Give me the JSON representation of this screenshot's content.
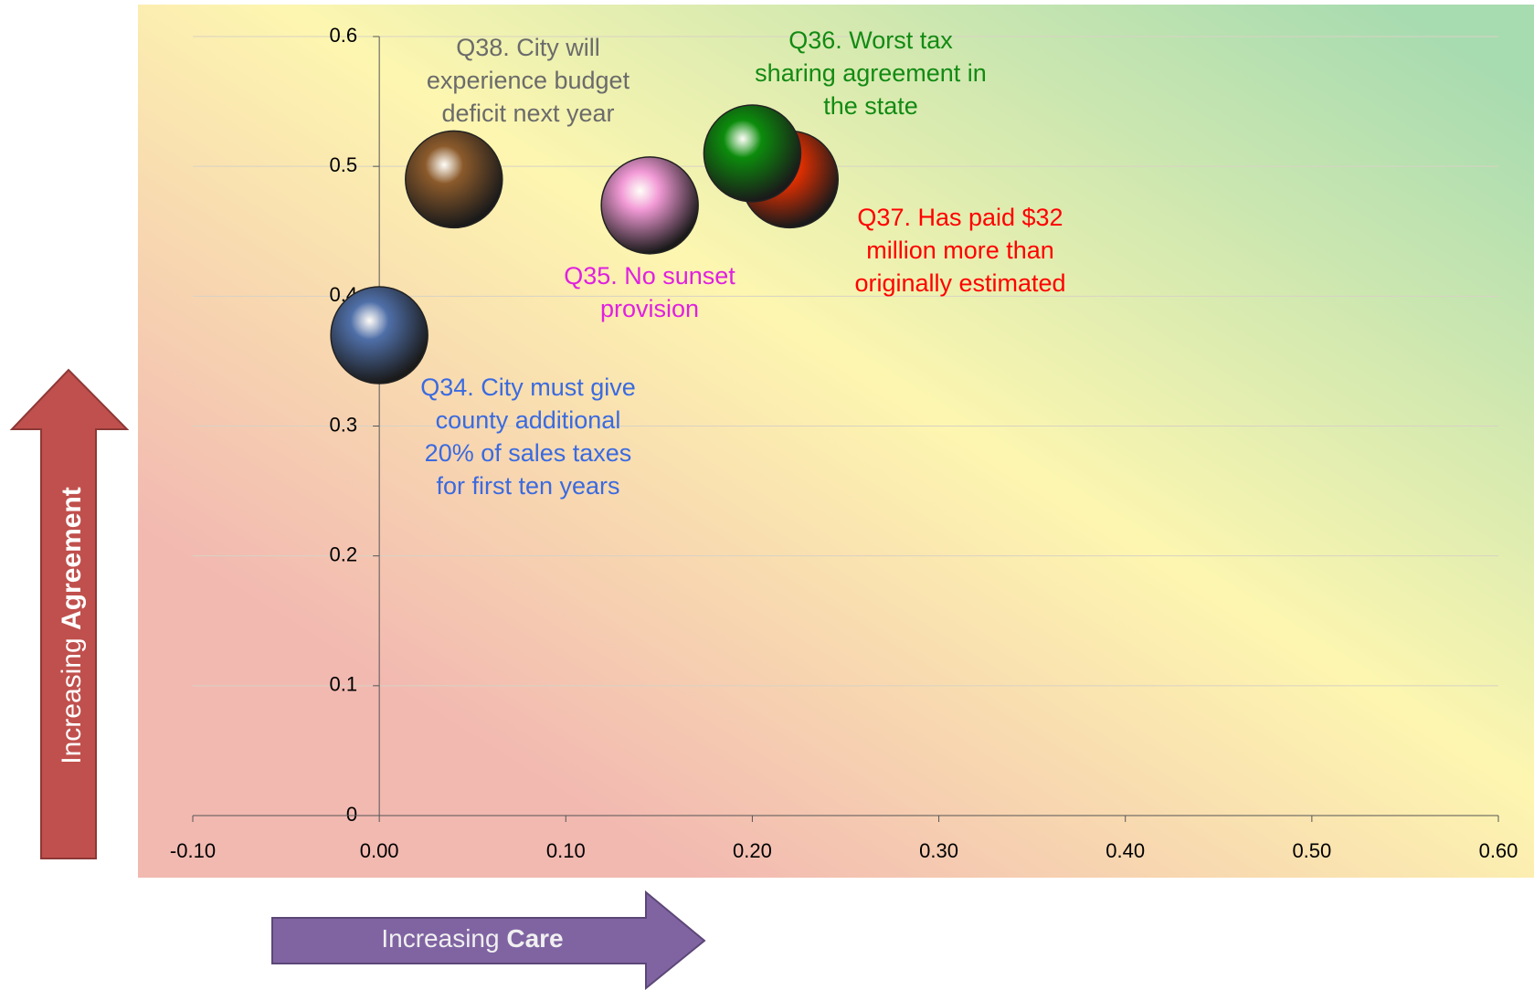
{
  "chart_data": {
    "type": "scatter",
    "x_label": [
      "Increasing",
      "Care"
    ],
    "y_label": [
      "Increasing",
      "Agreement"
    ],
    "xlim": [
      -0.1,
      0.6
    ],
    "ylim": [
      0,
      0.6
    ],
    "xticks": [
      {
        "value": -0.1,
        "label": "-0.10"
      },
      {
        "value": 0,
        "label": "0.00"
      },
      {
        "value": 0.1,
        "label": "0.10"
      },
      {
        "value": 0.2,
        "label": "0.20"
      },
      {
        "value": 0.3,
        "label": "0.30"
      },
      {
        "value": 0.4,
        "label": "0.40"
      },
      {
        "value": 0.5,
        "label": "0.50"
      },
      {
        "value": 0.6,
        "label": "0.60"
      }
    ],
    "yticks": [
      0,
      0.1,
      0.2,
      0.3,
      0.4,
      0.5,
      0.6
    ],
    "grid": true,
    "series": [
      {
        "label": [
          "Q34. City must give",
          "county additional",
          "20% of sales taxes",
          "for first ten years"
        ],
        "color": "#4f6fa8",
        "label_color": "#3a6ae0",
        "x": [
          0.0
        ],
        "values": [
          0.37
        ]
      },
      {
        "label": [
          "Q35. No sunset",
          "provision"
        ],
        "color": "#f29ad6",
        "label_color": "#e020e0",
        "x": [
          0.145
        ],
        "values": [
          0.47
        ]
      },
      {
        "label": [
          "Q37. Has paid $32",
          "million more than",
          "originally estimated"
        ],
        "color": "#e83000",
        "label_color": "#ff0000",
        "x": [
          0.22
        ],
        "values": [
          0.49
        ]
      },
      {
        "label": [
          "Q36. Worst tax",
          "sharing agreement in",
          "the state"
        ],
        "color": "#0c8c0c",
        "label_color": "#138a13",
        "x": [
          0.2
        ],
        "values": [
          0.51
        ]
      },
      {
        "label": [
          "Q38. City will",
          "experience budget",
          "deficit next year"
        ],
        "color": "#8b5a2b",
        "label_color": "#6b6b6b",
        "x": [
          0.04
        ],
        "values": [
          0.49
        ]
      }
    ]
  }
}
